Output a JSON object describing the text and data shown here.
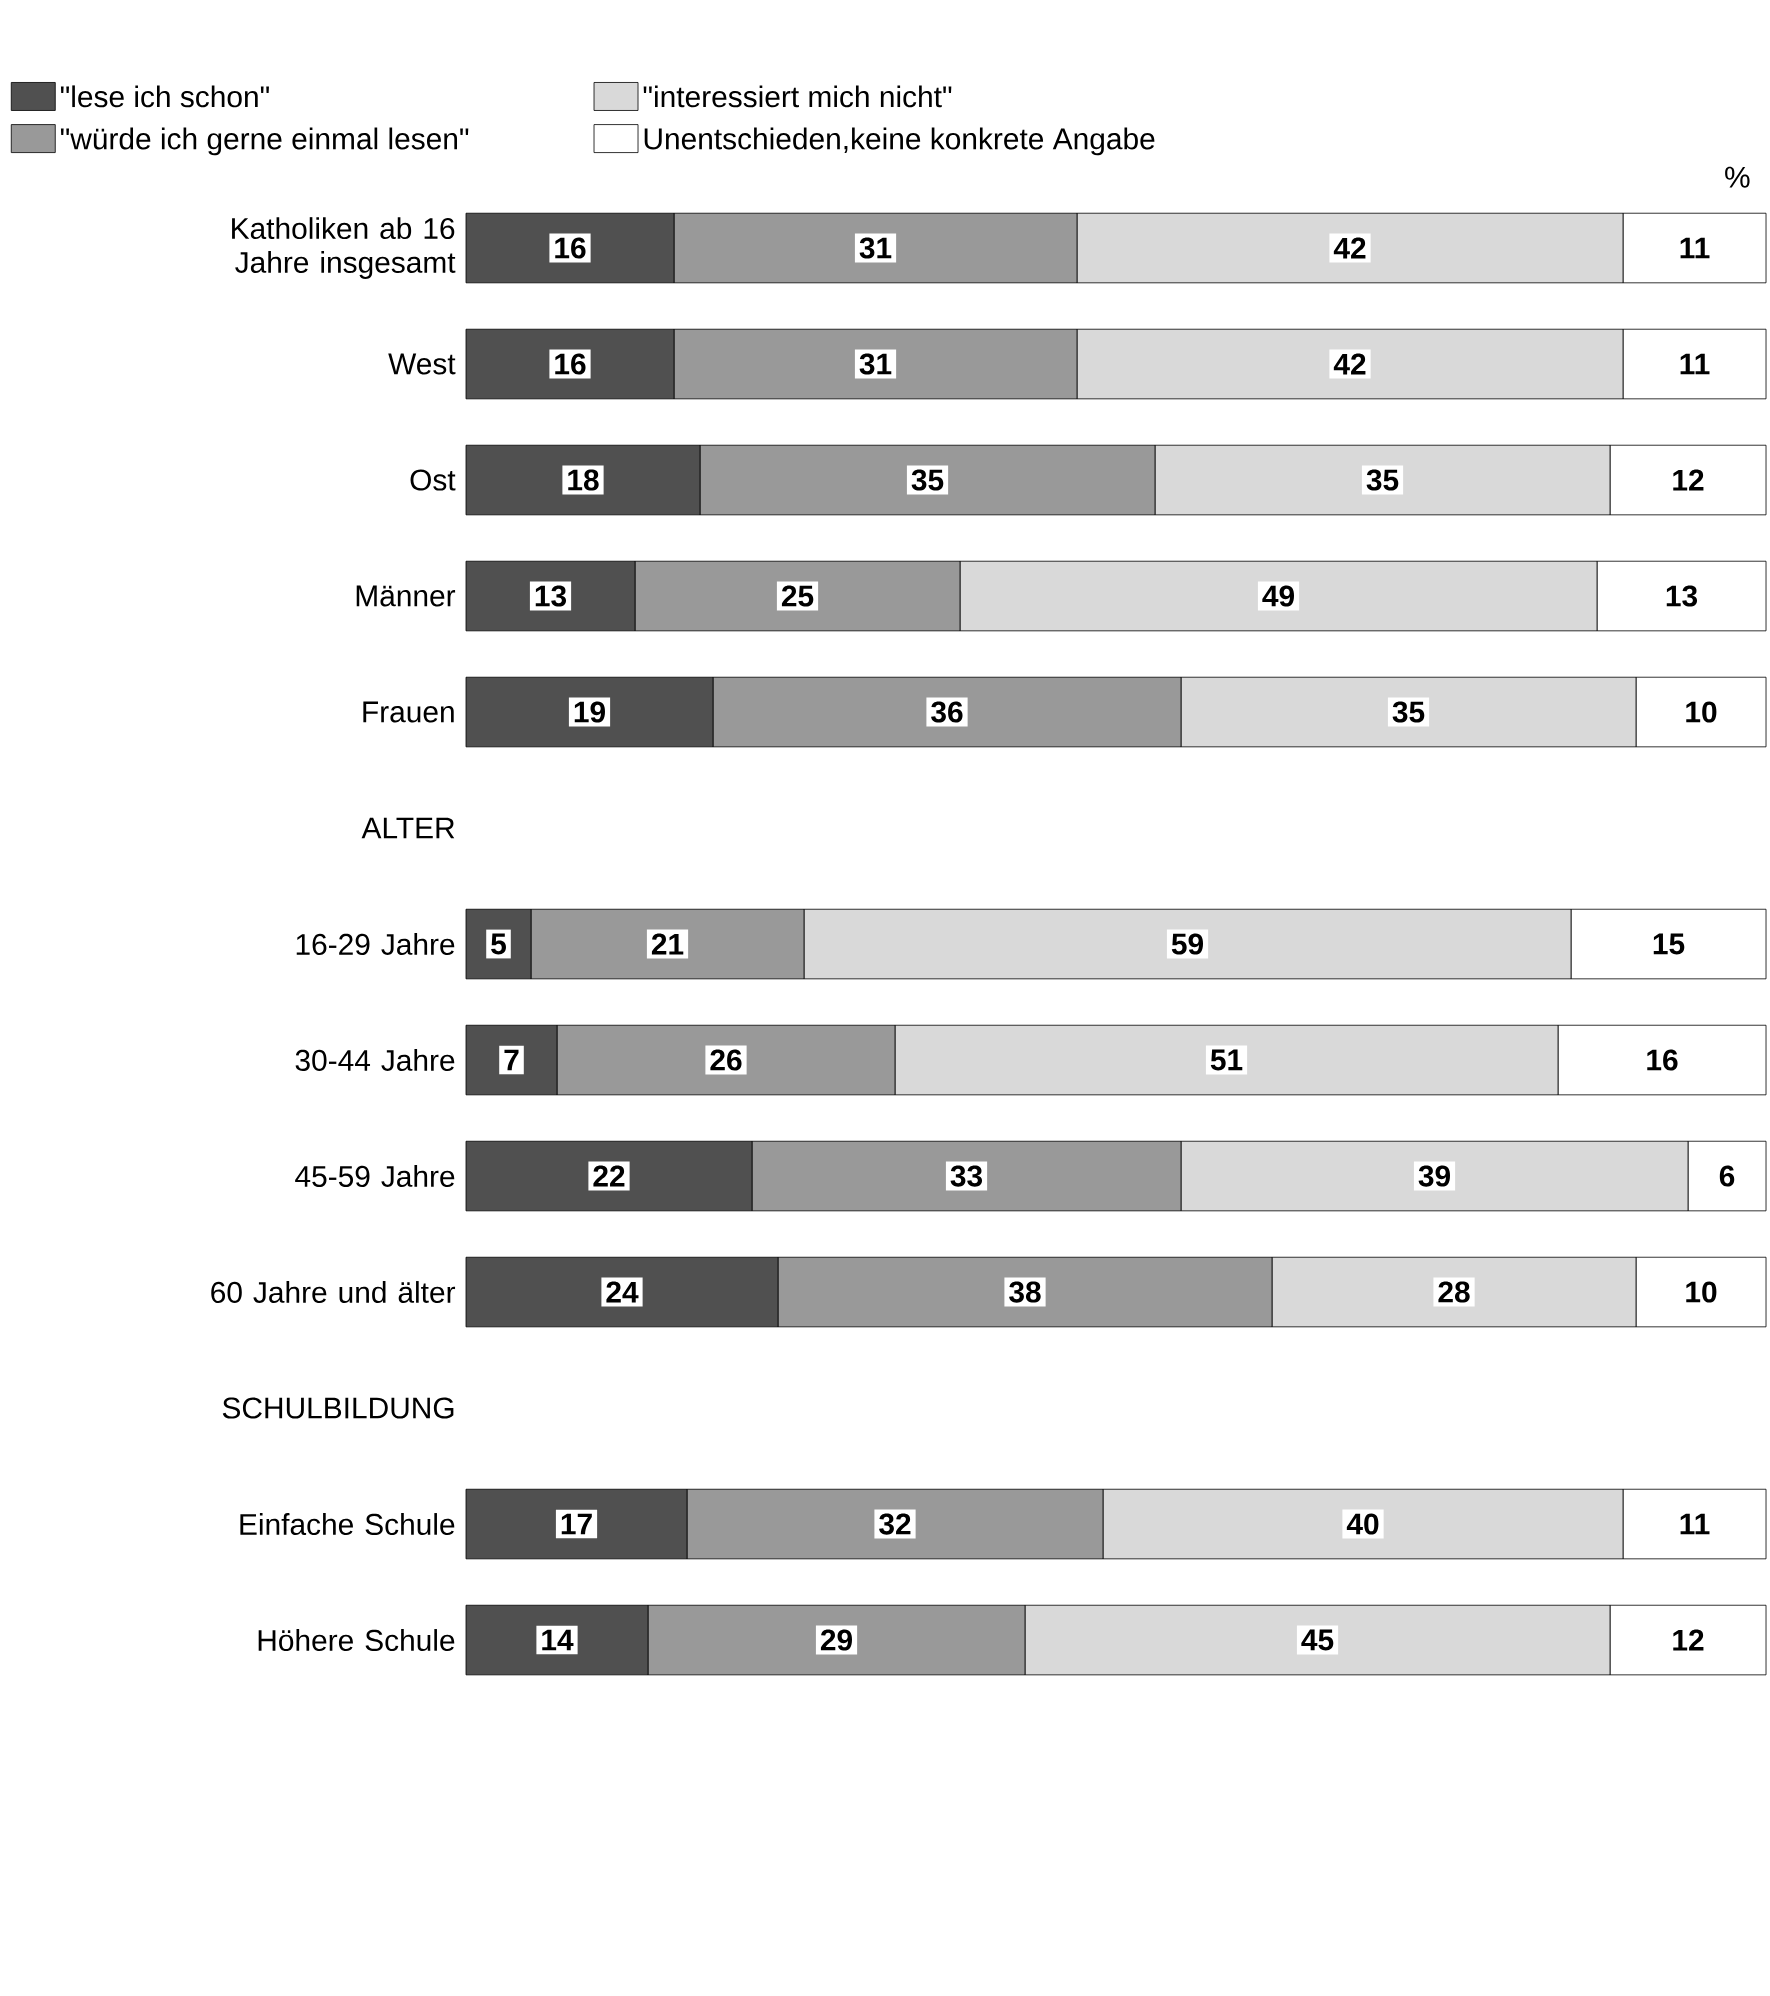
{
  "chart_data": {
    "type": "bar",
    "orientation": "horizontal",
    "stacked": true,
    "data_labels": true,
    "legend": "top",
    "tick_labels": "y",
    "xlim": [
      0,
      100
    ],
    "categories": [
      "Katholiken ab 16 Jahre insgesamt",
      "West",
      "Ost",
      "Männer",
      "Frauen",
      "ALTER",
      "16-29 Jahre",
      "30-44 Jahre",
      "45-59 Jahre",
      "60 Jahre und älter",
      "SCHULBILDUNG",
      "Einfache Schule",
      "Höhere Schule"
    ],
    "series": [
      {
        "name": "\"lese ich schon\"",
        "color": "#505050",
        "values": [
          16,
          16,
          18,
          13,
          19,
          null,
          5,
          7,
          22,
          24,
          null,
          17,
          14
        ]
      },
      {
        "name": "\"würde ich gerne einmal lesen\"",
        "color": "#999999",
        "values": [
          31,
          31,
          35,
          25,
          36,
          null,
          21,
          26,
          33,
          38,
          null,
          32,
          29
        ]
      },
      {
        "name": "\"interessiert mich nicht\"",
        "color": "#d9d9d9",
        "values": [
          42,
          42,
          35,
          49,
          35,
          null,
          59,
          51,
          39,
          28,
          null,
          40,
          45
        ]
      },
      {
        "name": "Unentschieden,keine konkrete Angabe",
        "color": "#ffffff",
        "values": [
          11,
          11,
          12,
          13,
          10,
          null,
          15,
          16,
          6,
          10,
          null,
          11,
          12
        ]
      }
    ],
    "annotations": [
      "%"
    ]
  }
}
